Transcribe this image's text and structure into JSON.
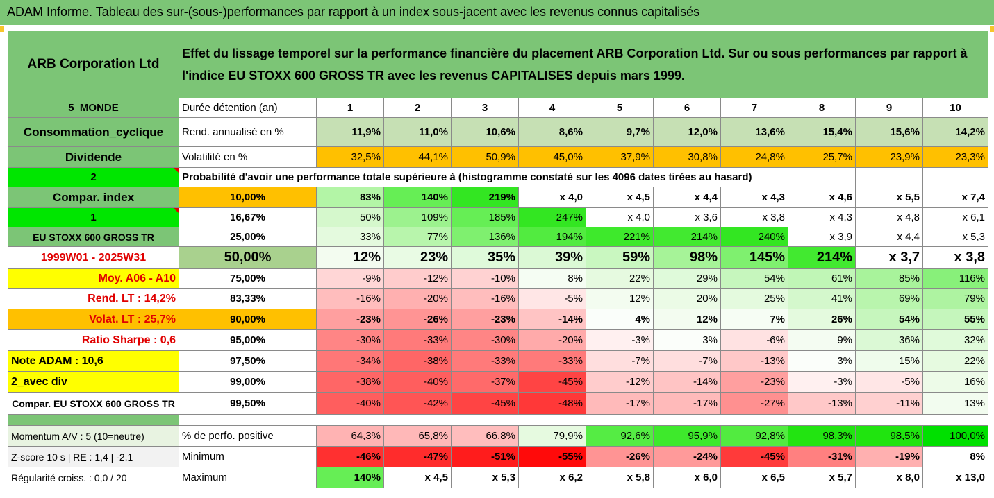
{
  "title": "ADAM Informe. Tableau des sur-(sous-)performances par rapport à un index sous-jacent avec les revenus connus capitalisés",
  "header": {
    "company": "ARB Corporation Ltd",
    "description_line1": "Effet du lissage temporel sur la performance financière du placement ARB Corporation Ltd. Sur ou sous performances par rapport à",
    "description_line2": "l'indice EU STOXX 600 GROSS TR avec les revenus CAPITALISES depuis mars 1999."
  },
  "left_labels": {
    "region": "5_MONDE",
    "sector": "Consommation_cyclique",
    "dividend": "Dividende",
    "two": "2",
    "compar_index": "Compar. index",
    "one": "1",
    "index_name": "EU STOXX 600 GROSS TR",
    "period": "1999W01 - 2025W31",
    "moy": "Moy. A06 - A10",
    "rend_lt": "Rend. LT :   14,2%",
    "volat_lt": "Volat. LT :   25,7%",
    "sharpe": "Ratio Sharpe :   0,6",
    "note": "Note ADAM : 10,6",
    "avec_div": "2_avec div",
    "compar_stoxx": "Compar. EU STOXX 600 GROSS TR",
    "momentum": "Momentum A/V : 5 (10=neutre)",
    "zscore": "Z-score 10 s  | RE : 1,4 | -2,1",
    "regularite": "Régularité croiss. : 0,0 / 20"
  },
  "row_labels": {
    "duree": "Durée détention (an)",
    "rend": "Rend. annualisé en %",
    "volat": "Volatilité en %",
    "proba": "Probabilité d'avoir une performance totale supérieure à (histogramme constaté sur les 4096 dates tirées au hasard)",
    "pct_positive": "% de perfo. positive",
    "minimum": "Minimum",
    "maximum": "Maximum"
  },
  "years": [
    "1",
    "2",
    "3",
    "4",
    "5",
    "6",
    "7",
    "8",
    "9",
    "10"
  ],
  "rend": [
    "11,9%",
    "11,0%",
    "10,6%",
    "8,6%",
    "9,7%",
    "12,0%",
    "13,6%",
    "15,4%",
    "15,6%",
    "14,2%"
  ],
  "volat": [
    "32,5%",
    "44,1%",
    "50,9%",
    "45,0%",
    "37,9%",
    "30,8%",
    "24,8%",
    "25,7%",
    "23,9%",
    "23,3%"
  ],
  "prob_rows": [
    {
      "q": "10,00%",
      "v": [
        "83%",
        "140%",
        "219%",
        "x 4,0",
        "x 4,5",
        "x 4,4",
        "x 4,3",
        "x 4,6",
        "x 5,5",
        "x 7,4"
      ],
      "bg": [
        "#b3f5a6",
        "#66ee55",
        "#33e622",
        "#ffffff",
        "#ffffff",
        "#ffffff",
        "#ffffff",
        "#ffffff",
        "#ffffff",
        "#ffffff"
      ]
    },
    {
      "q": "16,67%",
      "v": [
        "50%",
        "109%",
        "185%",
        "247%",
        "x 4,0",
        "x 3,6",
        "x 3,8",
        "x 4,3",
        "x 4,8",
        "x 6,1"
      ],
      "bg": [
        "#d5f8cc",
        "#9cf28e",
        "#66ee55",
        "#33e622",
        "#ffffff",
        "#ffffff",
        "#ffffff",
        "#ffffff",
        "#ffffff",
        "#ffffff"
      ]
    },
    {
      "q": "25,00%",
      "v": [
        "33%",
        "77%",
        "136%",
        "194%",
        "221%",
        "214%",
        "240%",
        "x 3,9",
        "x 4,4",
        "x 5,3"
      ],
      "bg": [
        "#e4faDE",
        "#b8f5ac",
        "#7ff06f",
        "#52eb40",
        "#3ee92c",
        "#42e930",
        "#33e622",
        "#ffffff",
        "#ffffff",
        "#ffffff"
      ]
    },
    {
      "q": "50,00%",
      "v": [
        "12%",
        "23%",
        "35%",
        "39%",
        "59%",
        "98%",
        "145%",
        "214%",
        "x 3,7",
        "x 3,8"
      ],
      "bg": [
        "#f3fcf0",
        "#e9fbe4",
        "#dffadA",
        "#dbf9d5",
        "#c9f7c0",
        "#a6f398",
        "#7ff06f",
        "#42e930",
        "#ffffff",
        "#ffffff"
      ]
    },
    {
      "q": "75,00%",
      "v": [
        "-9%",
        "-12%",
        "-10%",
        "8%",
        "22%",
        "29%",
        "54%",
        "61%",
        "85%",
        "116%"
      ],
      "bg": [
        "#ffd6d6",
        "#ffcccc",
        "#ffd2d2",
        "#f5fdf3",
        "#e6fae0",
        "#dffada",
        "#c6f6bd",
        "#c0f6b6",
        "#a8f39b",
        "#88f07a"
      ]
    },
    {
      "q": "83,33%",
      "v": [
        "-16%",
        "-20%",
        "-16%",
        "-5%",
        "12%",
        "20%",
        "25%",
        "41%",
        "69%",
        "79%"
      ],
      "bg": [
        "#ffbdbd",
        "#ffb0b0",
        "#ffbdbd",
        "#ffe6e6",
        "#f3fcf0",
        "#ebfbe6",
        "#e4faDE",
        "#d4f8cc",
        "#b9f5ad",
        "#aef3a1"
      ]
    },
    {
      "q": "90,00%",
      "v": [
        "-23%",
        "-26%",
        "-23%",
        "-14%",
        "4%",
        "12%",
        "7%",
        "26%",
        "54%",
        "55%"
      ],
      "bg": [
        "#ff9f9f",
        "#ff9494",
        "#ff9f9f",
        "#ffc4c4",
        "#fafefa",
        "#f3fcf0",
        "#f6fdf4",
        "#e4faDE",
        "#c6f6bd",
        "#c5f6bc"
      ]
    },
    {
      "q": "95,00%",
      "v": [
        "-30%",
        "-33%",
        "-30%",
        "-20%",
        "-3%",
        "3%",
        "-6%",
        "9%",
        "36%",
        "32%"
      ],
      "bg": [
        "#ff8585",
        "#ff7a7a",
        "#ff8585",
        "#ffaaaa",
        "#fff0f0",
        "#fbfefa",
        "#ffe2e2",
        "#f4fcf2",
        "#dbf9d5",
        "#e0fadA"
      ]
    },
    {
      "q": "97,50%",
      "v": [
        "-34%",
        "-38%",
        "-33%",
        "-33%",
        "-7%",
        "-7%",
        "-13%",
        "3%",
        "15%",
        "22%"
      ],
      "bg": [
        "#ff7777",
        "#ff6666",
        "#ff7a7a",
        "#ff7a7a",
        "#ffdede",
        "#ffdede",
        "#ffc8c8",
        "#fbfefa",
        "#effcec",
        "#e6fae0"
      ]
    },
    {
      "q": "99,00%",
      "v": [
        "-38%",
        "-40%",
        "-37%",
        "-45%",
        "-12%",
        "-14%",
        "-23%",
        "-3%",
        "-5%",
        "16%"
      ],
      "bg": [
        "#ff6666",
        "#ff5e5e",
        "#ff6a6a",
        "#ff4444",
        "#ffcccc",
        "#ffc4c4",
        "#ff9f9f",
        "#fff0f0",
        "#ffe6e6",
        "#edfbe8"
      ]
    },
    {
      "q": "99,50%",
      "v": [
        "-40%",
        "-42%",
        "-45%",
        "-48%",
        "-17%",
        "-17%",
        "-27%",
        "-13%",
        "-11%",
        "13%"
      ],
      "bg": [
        "#ff5e5e",
        "#ff5555",
        "#ff4444",
        "#ff3838",
        "#ffbaba",
        "#ffbaba",
        "#ff9090",
        "#ffc8c8",
        "#ffd0d0",
        "#f2fcef"
      ]
    }
  ],
  "pct_positive": [
    "64,3%",
    "65,8%",
    "66,8%",
    "79,9%",
    "92,6%",
    "95,9%",
    "92,8%",
    "98,3%",
    "98,5%",
    "100,0%"
  ],
  "pct_positive_bg": [
    "#ffb3b3",
    "#ffb8b8",
    "#ffbdbd",
    "#e6fae0",
    "#55ec44",
    "#3ee92c",
    "#52eb40",
    "#22e411",
    "#20e40f",
    "#00e000"
  ],
  "minimum": [
    "-46%",
    "-47%",
    "-51%",
    "-55%",
    "-26%",
    "-24%",
    "-45%",
    "-31%",
    "-19%",
    "8%"
  ],
  "minimum_bg": [
    "#ff3030",
    "#ff2c2c",
    "#ff1c1c",
    "#ff0a0a",
    "#ff9494",
    "#ff9a9a",
    "#ff3a3a",
    "#ff8080",
    "#ffb0b0",
    "#ffffff"
  ],
  "maximum": [
    "140%",
    "x 4,5",
    "x 5,3",
    "x 6,2",
    "x 5,8",
    "x 6,0",
    "x 6,5",
    "x 5,7",
    "x 8,0",
    "x 13,0"
  ],
  "maximum_bg": [
    "#66ee55",
    "#ffffff",
    "#ffffff",
    "#ffffff",
    "#ffffff",
    "#ffffff",
    "#ffffff",
    "#ffffff",
    "#ffffff",
    "#ffffff"
  ],
  "colors": {
    "header_green": "#7cc576",
    "bright_green": "#00e600",
    "yellow": "#ffff00",
    "orange": "#ffc000",
    "light_green": "#c6e0b4",
    "red_text": "#e00000"
  }
}
